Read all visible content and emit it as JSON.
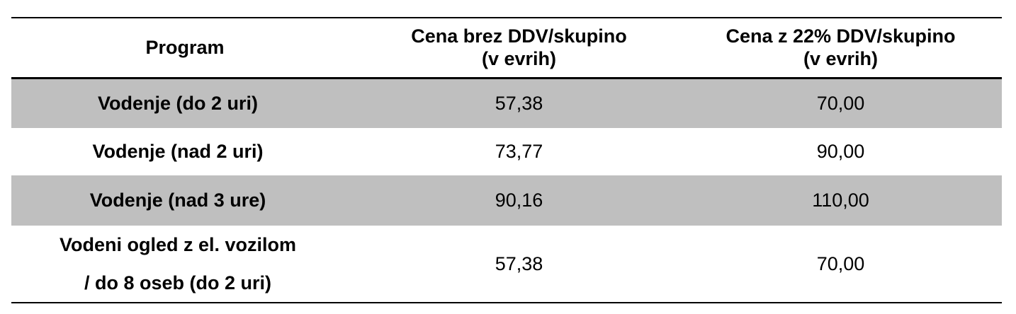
{
  "table": {
    "headers": {
      "program": "Program",
      "price_without_vat": [
        "Cena brez DDV/skupino",
        "(v evrih)"
      ],
      "price_with_vat": [
        "Cena z 22% DDV/skupino",
        "(v evrih)"
      ]
    },
    "rows": [
      {
        "program": [
          "Vodenje (do 2 uri)"
        ],
        "price_without_vat": "57,38",
        "price_with_vat": "70,00",
        "shaded": true
      },
      {
        "program": [
          "Vodenje (nad 2 uri)"
        ],
        "price_without_vat": "73,77",
        "price_with_vat": "90,00",
        "shaded": false
      },
      {
        "program": [
          "Vodenje (nad 3 ure)"
        ],
        "price_without_vat": "90,16",
        "price_with_vat": "110,00",
        "shaded": true
      },
      {
        "program": [
          "Vodeni ogled z el. vozilom",
          "/ do 8 oseb (do 2 uri)"
        ],
        "price_without_vat": "57,38",
        "price_with_vat": "70,00",
        "shaded": false
      }
    ]
  },
  "colors": {
    "shaded_row": "#bfbfbf",
    "rule": "#000000",
    "text": "#000000"
  }
}
